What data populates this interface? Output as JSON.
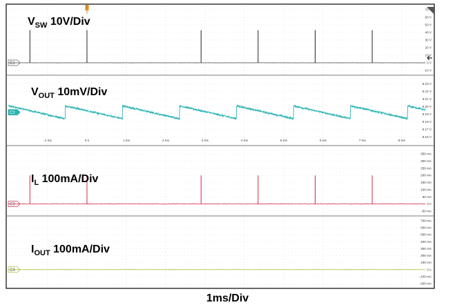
{
  "chart_data": {
    "type": "line",
    "time_axis": {
      "unit": "ms",
      "range": [
        -2,
        8.6
      ],
      "tick_labels": [
        "-1 ms",
        "0 s",
        "1 ms",
        "2 ms",
        "3 ms",
        "4 ms",
        "5 ms",
        "6 ms",
        "7 ms",
        "8 ms"
      ],
      "tick_values": [
        -1,
        0,
        1,
        2,
        3,
        4,
        5,
        6,
        7,
        8
      ],
      "division": "1ms/Div"
    },
    "grid": true,
    "panels": [
      {
        "channel": "C1",
        "title_main": "V",
        "title_sub": "SW",
        "title_rest": " 10V/Div",
        "color": "#555555",
        "unit": "V",
        "yrange": [
          -10,
          70
        ],
        "yticks": [
          70,
          60,
          50,
          40,
          30,
          20,
          10,
          0,
          -10
        ],
        "ytick_labels": [
          "70 V",
          "60 V",
          "50 V",
          "40 V",
          "30 V",
          "20 V",
          "10 V",
          "0 V",
          "-10 V"
        ],
        "baseline": 0,
        "pulse_times": [
          -1.45,
          0,
          2.9,
          4.35,
          5.8,
          7.25
        ],
        "pulse_peak": 43,
        "pulse_shape": "spike"
      },
      {
        "channel": "C2",
        "title_main": "V",
        "title_sub": "OUT",
        "title_rest": " 10mV/Div",
        "color": "#29b3b3",
        "unit": "V",
        "yrange": [
          6.155,
          6.235
        ],
        "yticks": [
          6.23,
          6.22,
          6.21,
          6.2,
          6.19,
          6.18,
          6.17,
          6.16
        ],
        "ytick_labels": [
          "6.23 V",
          "6.22 V",
          "6.21 V",
          "6.20 V",
          "6.19 V",
          "6.18 V",
          "6.17 V",
          "6.16 V"
        ],
        "sawtooth": {
          "period_ms": 1.45,
          "high": 6.201,
          "low": 6.184,
          "start": -2
        }
      },
      {
        "channel": "C3",
        "title_main": "I",
        "title_sub": "L",
        "title_rest": " 100mA/Div",
        "color": "#d02a4a",
        "unit": "mA",
        "yrange": [
          -50,
          375
        ],
        "yticks": [
          350,
          300,
          250,
          200,
          150,
          100,
          50,
          0,
          -50
        ],
        "ytick_labels": [
          "350 mA",
          "300 mA",
          "250 mA",
          "200 mA",
          "150 mA",
          "100 mA",
          "50 mA",
          "0 A",
          "-50 mA"
        ],
        "baseline": 0,
        "pulse_times": [
          -1.45,
          0,
          2.9,
          4.35,
          5.8,
          7.25
        ],
        "pulse_peak": 200,
        "pulse_shape": "spike"
      },
      {
        "channel": "C4",
        "title_main": "I",
        "title_sub": "OUT",
        "title_rest": " 100mA/Div",
        "color": "#a8b830",
        "unit": "mA",
        "yrange": [
          -200,
          700
        ],
        "yticks": [
          700,
          600,
          500,
          400,
          300,
          200,
          100,
          0,
          -100,
          -200
        ],
        "ytick_labels": [
          "700 mA",
          "600 mA",
          "500 mA",
          "400 mA",
          "300 mA",
          "200 mA",
          "100 mA",
          "0 A",
          "-100 mA",
          "-200 mA"
        ],
        "baseline": 0
      }
    ]
  }
}
